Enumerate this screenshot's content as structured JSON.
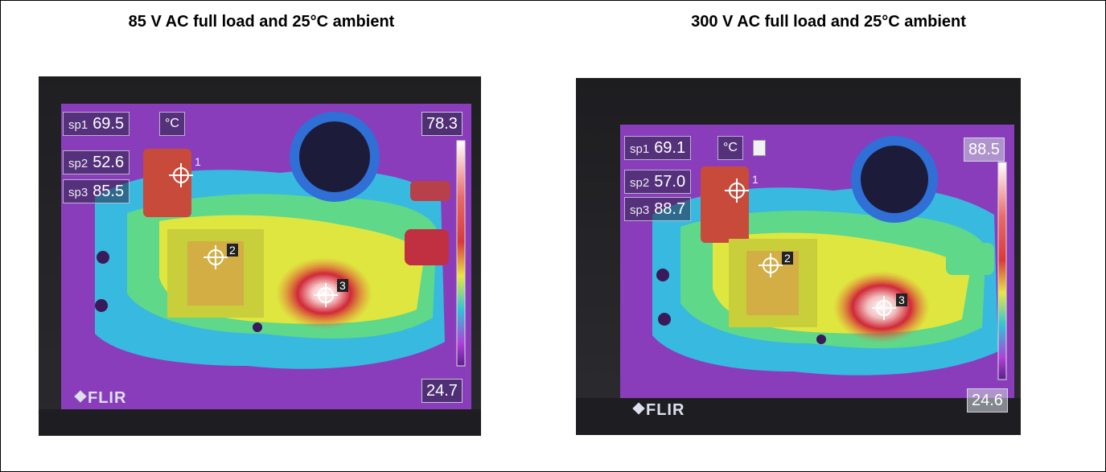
{
  "captions": {
    "left": "85 V AC full load and 25°C ambient",
    "right": "300 V AC full load and 25°C ambient"
  },
  "left_image": {
    "spots": [
      {
        "label": "sp1",
        "value": "69.5"
      },
      {
        "label": "sp2",
        "value": "52.6"
      },
      {
        "label": "sp3",
        "value": "85.5"
      }
    ],
    "unit": "°C",
    "scale_max": "78.3",
    "scale_min": "24.7",
    "logo": "FLIR",
    "markers": [
      "1",
      "2",
      "3"
    ]
  },
  "right_image": {
    "spots": [
      {
        "label": "sp1",
        "value": "69.1"
      },
      {
        "label": "sp2",
        "value": "57.0"
      },
      {
        "label": "sp3",
        "value": "88.7"
      }
    ],
    "unit": "°C",
    "scale_max": "88.5",
    "scale_min": "24.6",
    "logo": "FLIR",
    "markers": [
      "1",
      "2",
      "3"
    ]
  },
  "colors": {
    "palette_hot": "#ffffff",
    "palette_warm": "#c8283c",
    "palette_mid": "#e8e640",
    "palette_cool": "#2fc4d8",
    "palette_cold": "#b040d8",
    "palette_base": "#6a2a9a"
  },
  "icons": [
    "flir-logo-icon",
    "crosshair-icon",
    "lock-icon"
  ]
}
